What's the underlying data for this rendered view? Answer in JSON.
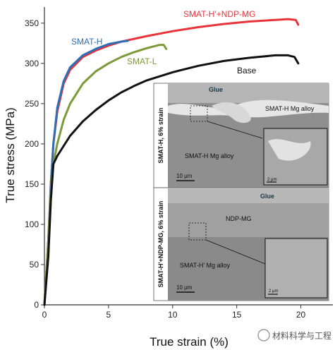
{
  "watermark": "材料科学与工程",
  "chart_data": {
    "type": "line",
    "xlabel": "True strain (%)",
    "ylabel": "True stress (MPa)",
    "xlim": [
      0,
      22.5
    ],
    "ylim": [
      0,
      370
    ],
    "x_ticks": [
      "0",
      "5",
      "10",
      "15",
      "20"
    ],
    "y_ticks": [
      "0",
      "50",
      "100",
      "150",
      "200",
      "250",
      "300",
      "350"
    ],
    "series": [
      {
        "name": "SMAT-H'+NDP-MG",
        "color": "#e8333a",
        "points": [
          [
            0,
            0
          ],
          [
            0.3,
            80
          ],
          [
            0.5,
            150
          ],
          [
            0.7,
            200
          ],
          [
            1,
            240
          ],
          [
            1.5,
            275
          ],
          [
            2,
            292
          ],
          [
            3,
            308
          ],
          [
            4,
            316
          ],
          [
            5,
            322
          ],
          [
            6,
            327
          ],
          [
            8,
            334
          ],
          [
            10,
            340
          ],
          [
            12,
            345
          ],
          [
            14,
            349
          ],
          [
            16,
            352
          ],
          [
            18,
            354
          ],
          [
            19,
            355
          ],
          [
            19.6,
            354
          ],
          [
            19.8,
            348
          ]
        ]
      },
      {
        "name": "SMAT-H",
        "color": "#2f6db5",
        "points": [
          [
            0,
            0
          ],
          [
            0.3,
            80
          ],
          [
            0.5,
            150
          ],
          [
            0.7,
            200
          ],
          [
            1,
            245
          ],
          [
            1.5,
            278
          ],
          [
            2,
            295
          ],
          [
            3,
            310
          ],
          [
            4,
            318
          ],
          [
            5,
            324
          ],
          [
            6,
            327
          ],
          [
            6.5,
            328
          ]
        ]
      },
      {
        "name": "SMAT-L",
        "color": "#7d9a3a",
        "points": [
          [
            0,
            0
          ],
          [
            0.3,
            80
          ],
          [
            0.5,
            140
          ],
          [
            0.7,
            175
          ],
          [
            1,
            200
          ],
          [
            1.5,
            230
          ],
          [
            2,
            250
          ],
          [
            3,
            275
          ],
          [
            4,
            290
          ],
          [
            5,
            300
          ],
          [
            6,
            308
          ],
          [
            7,
            314
          ],
          [
            8,
            319
          ],
          [
            9,
            323
          ],
          [
            9.3,
            323
          ],
          [
            9.5,
            318
          ]
        ]
      },
      {
        "name": "Base",
        "color": "#111111",
        "points": [
          [
            0,
            0
          ],
          [
            0.3,
            60
          ],
          [
            0.5,
            130
          ],
          [
            0.7,
            175
          ],
          [
            1,
            185
          ],
          [
            2,
            210
          ],
          [
            3,
            228
          ],
          [
            4,
            242
          ],
          [
            5,
            254
          ],
          [
            6,
            264
          ],
          [
            7,
            272
          ],
          [
            8,
            279
          ],
          [
            10,
            289
          ],
          [
            12,
            297
          ],
          [
            14,
            303
          ],
          [
            16,
            307
          ],
          [
            18,
            310
          ],
          [
            19,
            310
          ],
          [
            19.5,
            308
          ],
          [
            19.8,
            300
          ]
        ]
      }
    ],
    "series_labels": [
      "SMAT-H'+NDP-MG",
      "SMAT-H",
      "SMAT-L",
      "Base"
    ],
    "inset_top": {
      "side_label": "SMAT-H, 6% strain",
      "glue_label": "Glue",
      "layer_label": "SMAT-H Mg alloy",
      "bulk_label": "SMAT-H Mg alloy",
      "scale_bar": "10 μm",
      "zoom_scale_bar": "2 μm"
    },
    "inset_bottom": {
      "side_label": "SMAT-H'+NDP-MG, 6% strain",
      "glue_label": "Glue",
      "layer_label": "NDP-MG",
      "bulk_label": "SMAT-H' Mg alloy",
      "scale_bar": "10 μm",
      "zoom_scale_bar": "2 μm"
    }
  }
}
